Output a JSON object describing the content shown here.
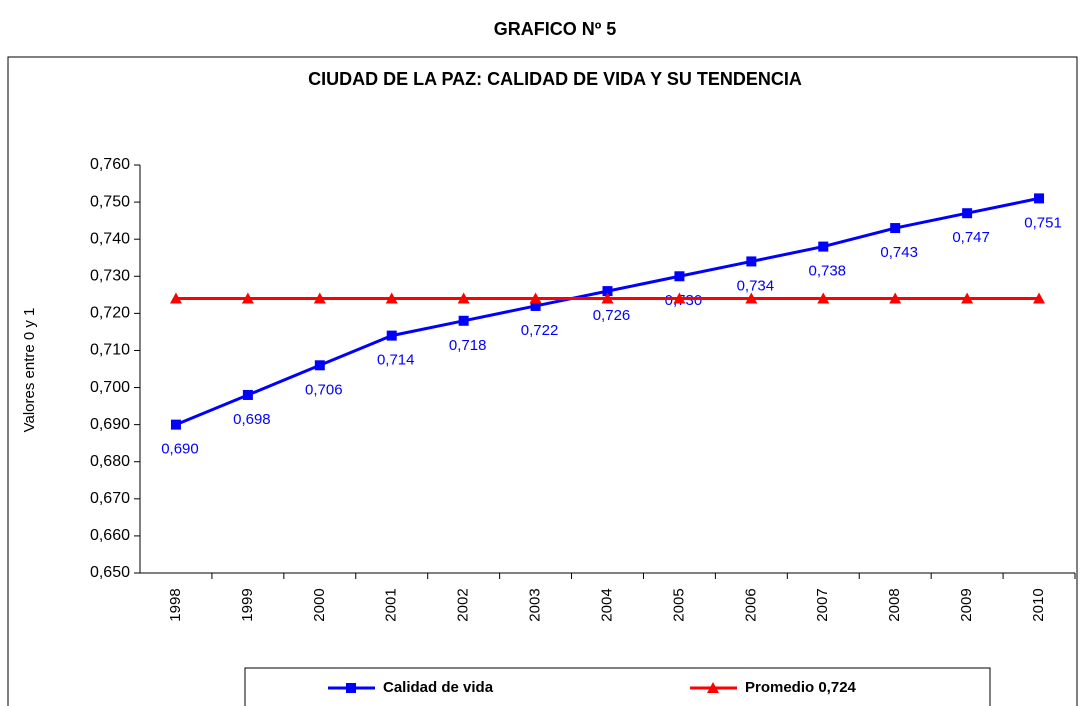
{
  "chart_data": {
    "type": "line",
    "supertitle": "GRAFICO Nº 5",
    "title": "CIUDAD DE LA PAZ: CALIDAD DE VIDA Y SU TENDENCIA",
    "y_label": "Valores entre 0 y 1",
    "categories": [
      "1998",
      "1999",
      "2000",
      "2001",
      "2002",
      "2003",
      "2004",
      "2005",
      "2006",
      "2007",
      "2008",
      "2009",
      "2010"
    ],
    "series": [
      {
        "name": "Calidad de vida",
        "color": "#0000ff",
        "marker": "square",
        "values": [
          0.69,
          0.698,
          0.706,
          0.714,
          0.718,
          0.722,
          0.726,
          0.73,
          0.734,
          0.738,
          0.743,
          0.747,
          0.751
        ],
        "value_labels": [
          "0,690",
          "0,698",
          "0,706",
          "0,714",
          "0,718",
          "0,722",
          "0,726",
          "0,730",
          "0,734",
          "0,738",
          "0,743",
          "0,747",
          "0,751"
        ]
      },
      {
        "name": "Promedio 0,724",
        "color": "#ff0000",
        "marker": "triangle",
        "values": [
          0.724,
          0.724,
          0.724,
          0.724,
          0.724,
          0.724,
          0.724,
          0.724,
          0.724,
          0.724,
          0.724,
          0.724,
          0.724
        ]
      }
    ],
    "ylim": [
      0.65,
      0.76
    ],
    "yticks": [
      {
        "value": 0.65,
        "label": "0,650"
      },
      {
        "value": 0.66,
        "label": "0,660"
      },
      {
        "value": 0.67,
        "label": "0,670"
      },
      {
        "value": 0.68,
        "label": "0,680"
      },
      {
        "value": 0.69,
        "label": "0,690"
      },
      {
        "value": 0.7,
        "label": "0,700"
      },
      {
        "value": 0.71,
        "label": "0,710"
      },
      {
        "value": 0.72,
        "label": "0,720"
      },
      {
        "value": 0.73,
        "label": "0,730"
      },
      {
        "value": 0.74,
        "label": "0,740"
      },
      {
        "value": 0.75,
        "label": "0,750"
      },
      {
        "value": 0.76,
        "label": "0,760"
      }
    ],
    "grid": false,
    "legend": "bottom"
  }
}
